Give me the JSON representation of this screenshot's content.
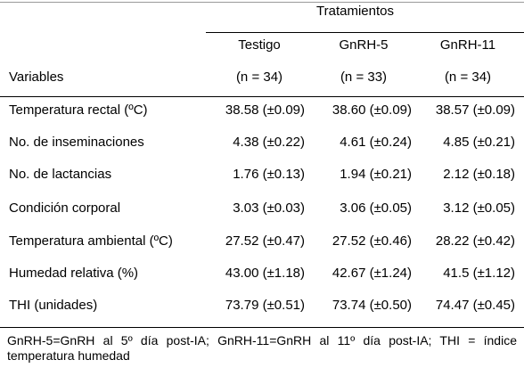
{
  "table": {
    "group_header": "Tratamientos",
    "row_header": "Variables",
    "columns": [
      {
        "name": "Testigo",
        "n": "(n = 34)"
      },
      {
        "name": "GnRH-5",
        "n": "(n = 33)"
      },
      {
        "name": "GnRH-11",
        "n": "(n = 34)"
      }
    ],
    "rows": [
      {
        "label": "Temperatura rectal (ºC)",
        "values": [
          "38.58 (±0.09)",
          "38.60 (±0.09)",
          "38.57 (±0.09)"
        ]
      },
      {
        "label": "No. de inseminaciones",
        "values": [
          "4.38 (±0.22)",
          "4.61 (±0.24)",
          "4.85 (±0.21)"
        ]
      },
      {
        "label": "No. de lactancias",
        "values": [
          "1.76 (±0.13)",
          "1.94 (±0.21)",
          "2.12 (±0.18)"
        ]
      },
      {
        "label": "Condición corporal",
        "values": [
          "3.03 (±0.03)",
          "3.06 (±0.05)",
          "3.12 (±0.05)"
        ]
      },
      {
        "label": "Temperatura ambiental (ºC)",
        "values": [
          "27.52 (±0.47)",
          "27.52 (±0.46)",
          "28.22 (±0.42)"
        ]
      },
      {
        "label": "Humedad relativa (%)",
        "values": [
          "43.00 (±1.18)",
          "42.67 (±1.24)",
          "41.5 (±1.12)"
        ]
      },
      {
        "label": "THI (unidades)",
        "values": [
          "73.79 (±0.51)",
          "73.74 (±0.50)",
          "74.47 (±0.45)"
        ]
      }
    ],
    "footnote": "GnRH-5=GnRH al 5º día post-IA; GnRH-11=GnRH al 11º día post-IA; THI = índice temperatura humedad"
  }
}
